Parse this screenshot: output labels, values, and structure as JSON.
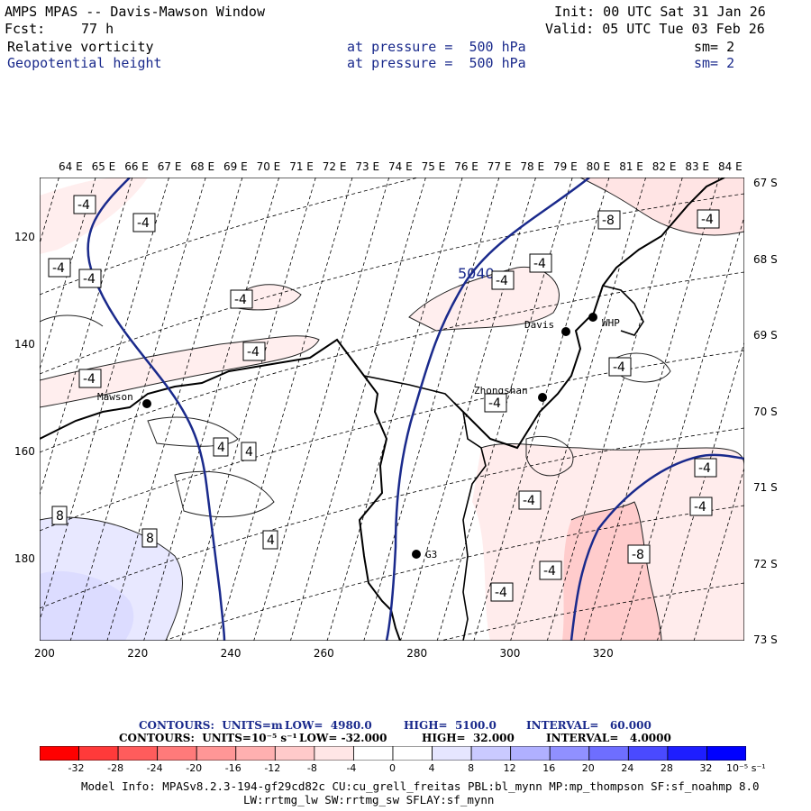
{
  "header": {
    "title": "AMPS MPAS -- Davis-Mawson Window",
    "init": "Init: 00 UTC Sat 31 Jan 26",
    "fcst_label": "Fcst:",
    "fcst_value": "77 h",
    "valid": "Valid: 05 UTC Tue 03 Feb 26"
  },
  "fields": [
    {
      "name": "Relative vorticity",
      "level": "at pressure =  500 hPa",
      "sm": "sm= 2"
    },
    {
      "name": "Geopotential height",
      "level": "at pressure =  500 hPa",
      "sm": "sm= 2"
    }
  ],
  "axes": {
    "top_ticks": [
      "64 E",
      "65 E",
      "66 E",
      "67 E",
      "68 E",
      "69 E",
      "70 E",
      "71 E",
      "72 E",
      "73 E",
      "74 E",
      "75 E",
      "76 E",
      "77 E",
      "78 E",
      "79 E",
      "80 E",
      "81 E",
      "82 E",
      "83 E",
      "84 E"
    ],
    "right_ticks": [
      "67 S",
      "68 S",
      "69 S",
      "70 S",
      "71 S",
      "72 S",
      "73 S"
    ],
    "left_ticks": [
      "120",
      "140",
      "160",
      "180"
    ],
    "bottom_ticks": [
      "200",
      "220",
      "240",
      "260",
      "280",
      "300",
      "320"
    ]
  },
  "stations": [
    {
      "name": "Mawson"
    },
    {
      "name": "Davis"
    },
    {
      "name": "WHP"
    },
    {
      "name": "Zhongshan"
    },
    {
      "name": "G3"
    }
  ],
  "contour_labels": {
    "height": "5040",
    "vort": [
      "-4",
      "-4",
      "-4",
      "-4",
      "-4",
      "-4",
      "-4",
      "-4",
      "-4",
      "-4",
      "-4",
      "-4",
      "-4",
      "-4",
      "-4",
      "-4",
      "-8",
      "-8",
      "-4",
      "8",
      "8",
      "4",
      "4",
      "4"
    ]
  },
  "legend": {
    "height_line": {
      "label": "CONTOURS:  UNITS=m",
      "low": "LOW=  4980.0",
      "high": "HIGH=  5100.0",
      "interval": "INTERVAL=   60.000"
    },
    "vort_line": {
      "label": "CONTOURS:  UNITS=10⁻⁵ s⁻¹",
      "low": "LOW= -32.000",
      "high": "HIGH=  32.000",
      "interval": "INTERVAL=   4.0000"
    },
    "colorbar_ticks": [
      "-32",
      "-28",
      "-24",
      "-20",
      "-16",
      "-12",
      "-8",
      "-4",
      "0",
      "4",
      "8",
      "12",
      "16",
      "20",
      "24",
      "28",
      "32"
    ],
    "colorbar_unit": "10⁻⁵ s⁻¹",
    "colors": [
      "#ff0000",
      "#ff3a3a",
      "#ff5c5c",
      "#ff7a7a",
      "#ff9696",
      "#ffb0b0",
      "#ffcaca",
      "#ffe6e6",
      "#ffffff",
      "#ffffff",
      "#e6e6ff",
      "#cacaff",
      "#b0b0ff",
      "#9090ff",
      "#6e6eff",
      "#4a4aff",
      "#1e1eff",
      "#0000ff"
    ]
  },
  "footer": {
    "line1": "Model Info: MPASv8.2.3-194-gf29cd82c CU:cu_grell_freitas PBL:bl_mynn MP:mp_thompson SF:sf_noahmp 8.0",
    "line2": "LW:rrtmg_lw SW:rrtmg_sw SFLAY:sf_mynn"
  },
  "colors": {
    "height_contour": "#1a2a8c",
    "coast": "#000000"
  }
}
